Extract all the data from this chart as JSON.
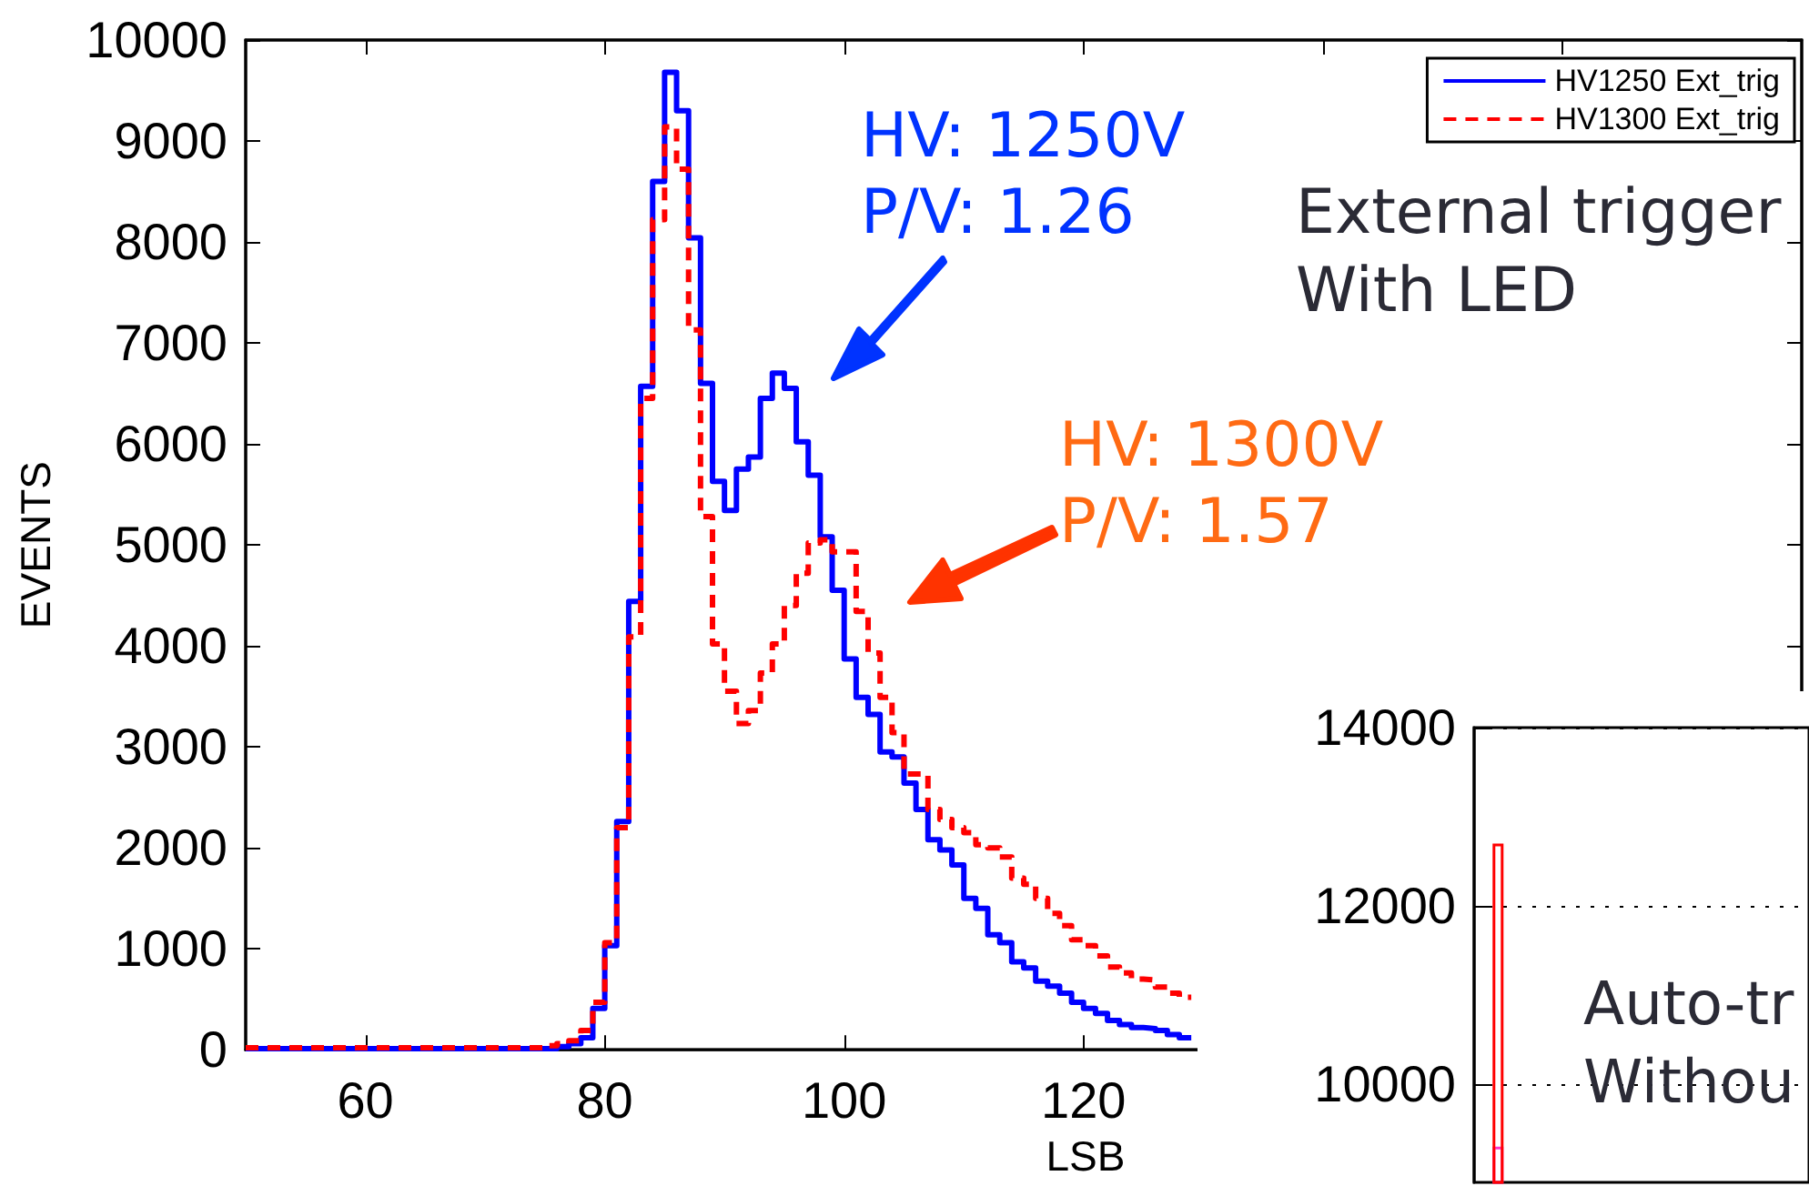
{
  "chart_data": [
    {
      "type": "histogram",
      "xlabel": "LSB",
      "ylabel": "EVENTS",
      "bins": [
        50,
        51,
        52,
        53,
        54,
        55,
        56,
        57,
        58,
        59,
        60,
        61,
        62,
        63,
        64,
        65,
        66,
        67,
        68,
        69,
        70,
        71,
        72,
        73,
        74,
        75,
        76,
        77,
        78,
        79,
        80,
        81,
        82,
        83,
        84,
        85,
        86,
        87,
        88,
        89,
        90,
        91,
        92,
        93,
        94,
        95,
        96,
        97,
        98,
        99,
        100,
        101,
        102,
        103,
        104,
        105,
        106,
        107,
        108,
        109,
        110,
        111,
        112,
        113,
        114,
        115,
        116,
        117,
        118,
        119,
        120,
        121,
        122,
        123,
        124,
        125,
        126,
        127,
        128,
        129
      ],
      "series": [
        {
          "name": "HV1250 Ext_trig",
          "color": "#0000ff",
          "line_style": "solid",
          "values": [
            10,
            10,
            10,
            10,
            10,
            10,
            10,
            10,
            10,
            10,
            10,
            10,
            10,
            10,
            10,
            10,
            10,
            10,
            10,
            10,
            10,
            10,
            10,
            10,
            10,
            10,
            30,
            60,
            120,
            410,
            1030,
            2260,
            4440,
            6570,
            8600,
            9680,
            9300,
            8040,
            6600,
            5630,
            5340,
            5750,
            5870,
            6450,
            6700,
            6550,
            6020,
            5690,
            5080,
            4550,
            3870,
            3490,
            3320,
            2950,
            2900,
            2640,
            2380,
            2080,
            1980,
            1830,
            1500,
            1400,
            1140,
            1060,
            870,
            810,
            680,
            630,
            560,
            470,
            410,
            360,
            290,
            250,
            220,
            210,
            190,
            150,
            120
          ]
        },
        {
          "name": "HV1300 Ext_trig",
          "color": "#ff0000",
          "line_style": "dashed",
          "values": [
            20,
            20,
            20,
            20,
            20,
            20,
            20,
            20,
            20,
            20,
            20,
            20,
            20,
            20,
            20,
            20,
            20,
            20,
            20,
            20,
            20,
            20,
            20,
            20,
            20,
            40,
            60,
            90,
            190,
            470,
            1060,
            2200,
            4090,
            6450,
            8220,
            9140,
            8720,
            7130,
            5280,
            4020,
            3550,
            3230,
            3360,
            3730,
            4020,
            4400,
            4720,
            5020,
            5050,
            4930,
            4930,
            4340,
            3930,
            3490,
            3140,
            2730,
            2730,
            2380,
            2280,
            2200,
            2150,
            2030,
            2000,
            1910,
            1700,
            1640,
            1500,
            1350,
            1230,
            1090,
            1030,
            930,
            820,
            760,
            700,
            690,
            620,
            560,
            520
          ]
        }
      ],
      "xlim": [
        50,
        180
      ],
      "xticks": [
        60,
        80,
        100,
        120,
        {
          "value": 140,
          "label": null
        },
        {
          "value": 160,
          "label": null
        }
      ],
      "ylim": [
        0,
        10000
      ],
      "yticks": [
        0,
        1000,
        2000,
        3000,
        4000,
        5000,
        6000,
        7000,
        8000,
        9000,
        10000
      ],
      "legend": "top right",
      "annotations": [
        "HV: 1250V",
        "P/V: 1.26",
        "HV: 1300V",
        "P/V: 1.57",
        "External trigger",
        "With LED"
      ]
    },
    {
      "type": "bar",
      "categories": [
        null,
        null,
        null,
        null,
        null,
        null,
        null
      ],
      "series": [
        {
          "color": "#ff0000",
          "values": [
            12700,
            null,
            null,
            null,
            null,
            null,
            null
          ]
        },
        {
          "color": "#ff33cc",
          "values": [
            9300,
            null,
            null,
            null,
            null,
            null,
            null
          ]
        }
      ],
      "ylim": [
        8900,
        14000
      ],
      "yticks": [
        10000,
        12000,
        14000
      ],
      "grid": "y",
      "tick_labels": "y",
      "annotations": [
        "Auto-tr",
        "Withou"
      ]
    }
  ]
}
